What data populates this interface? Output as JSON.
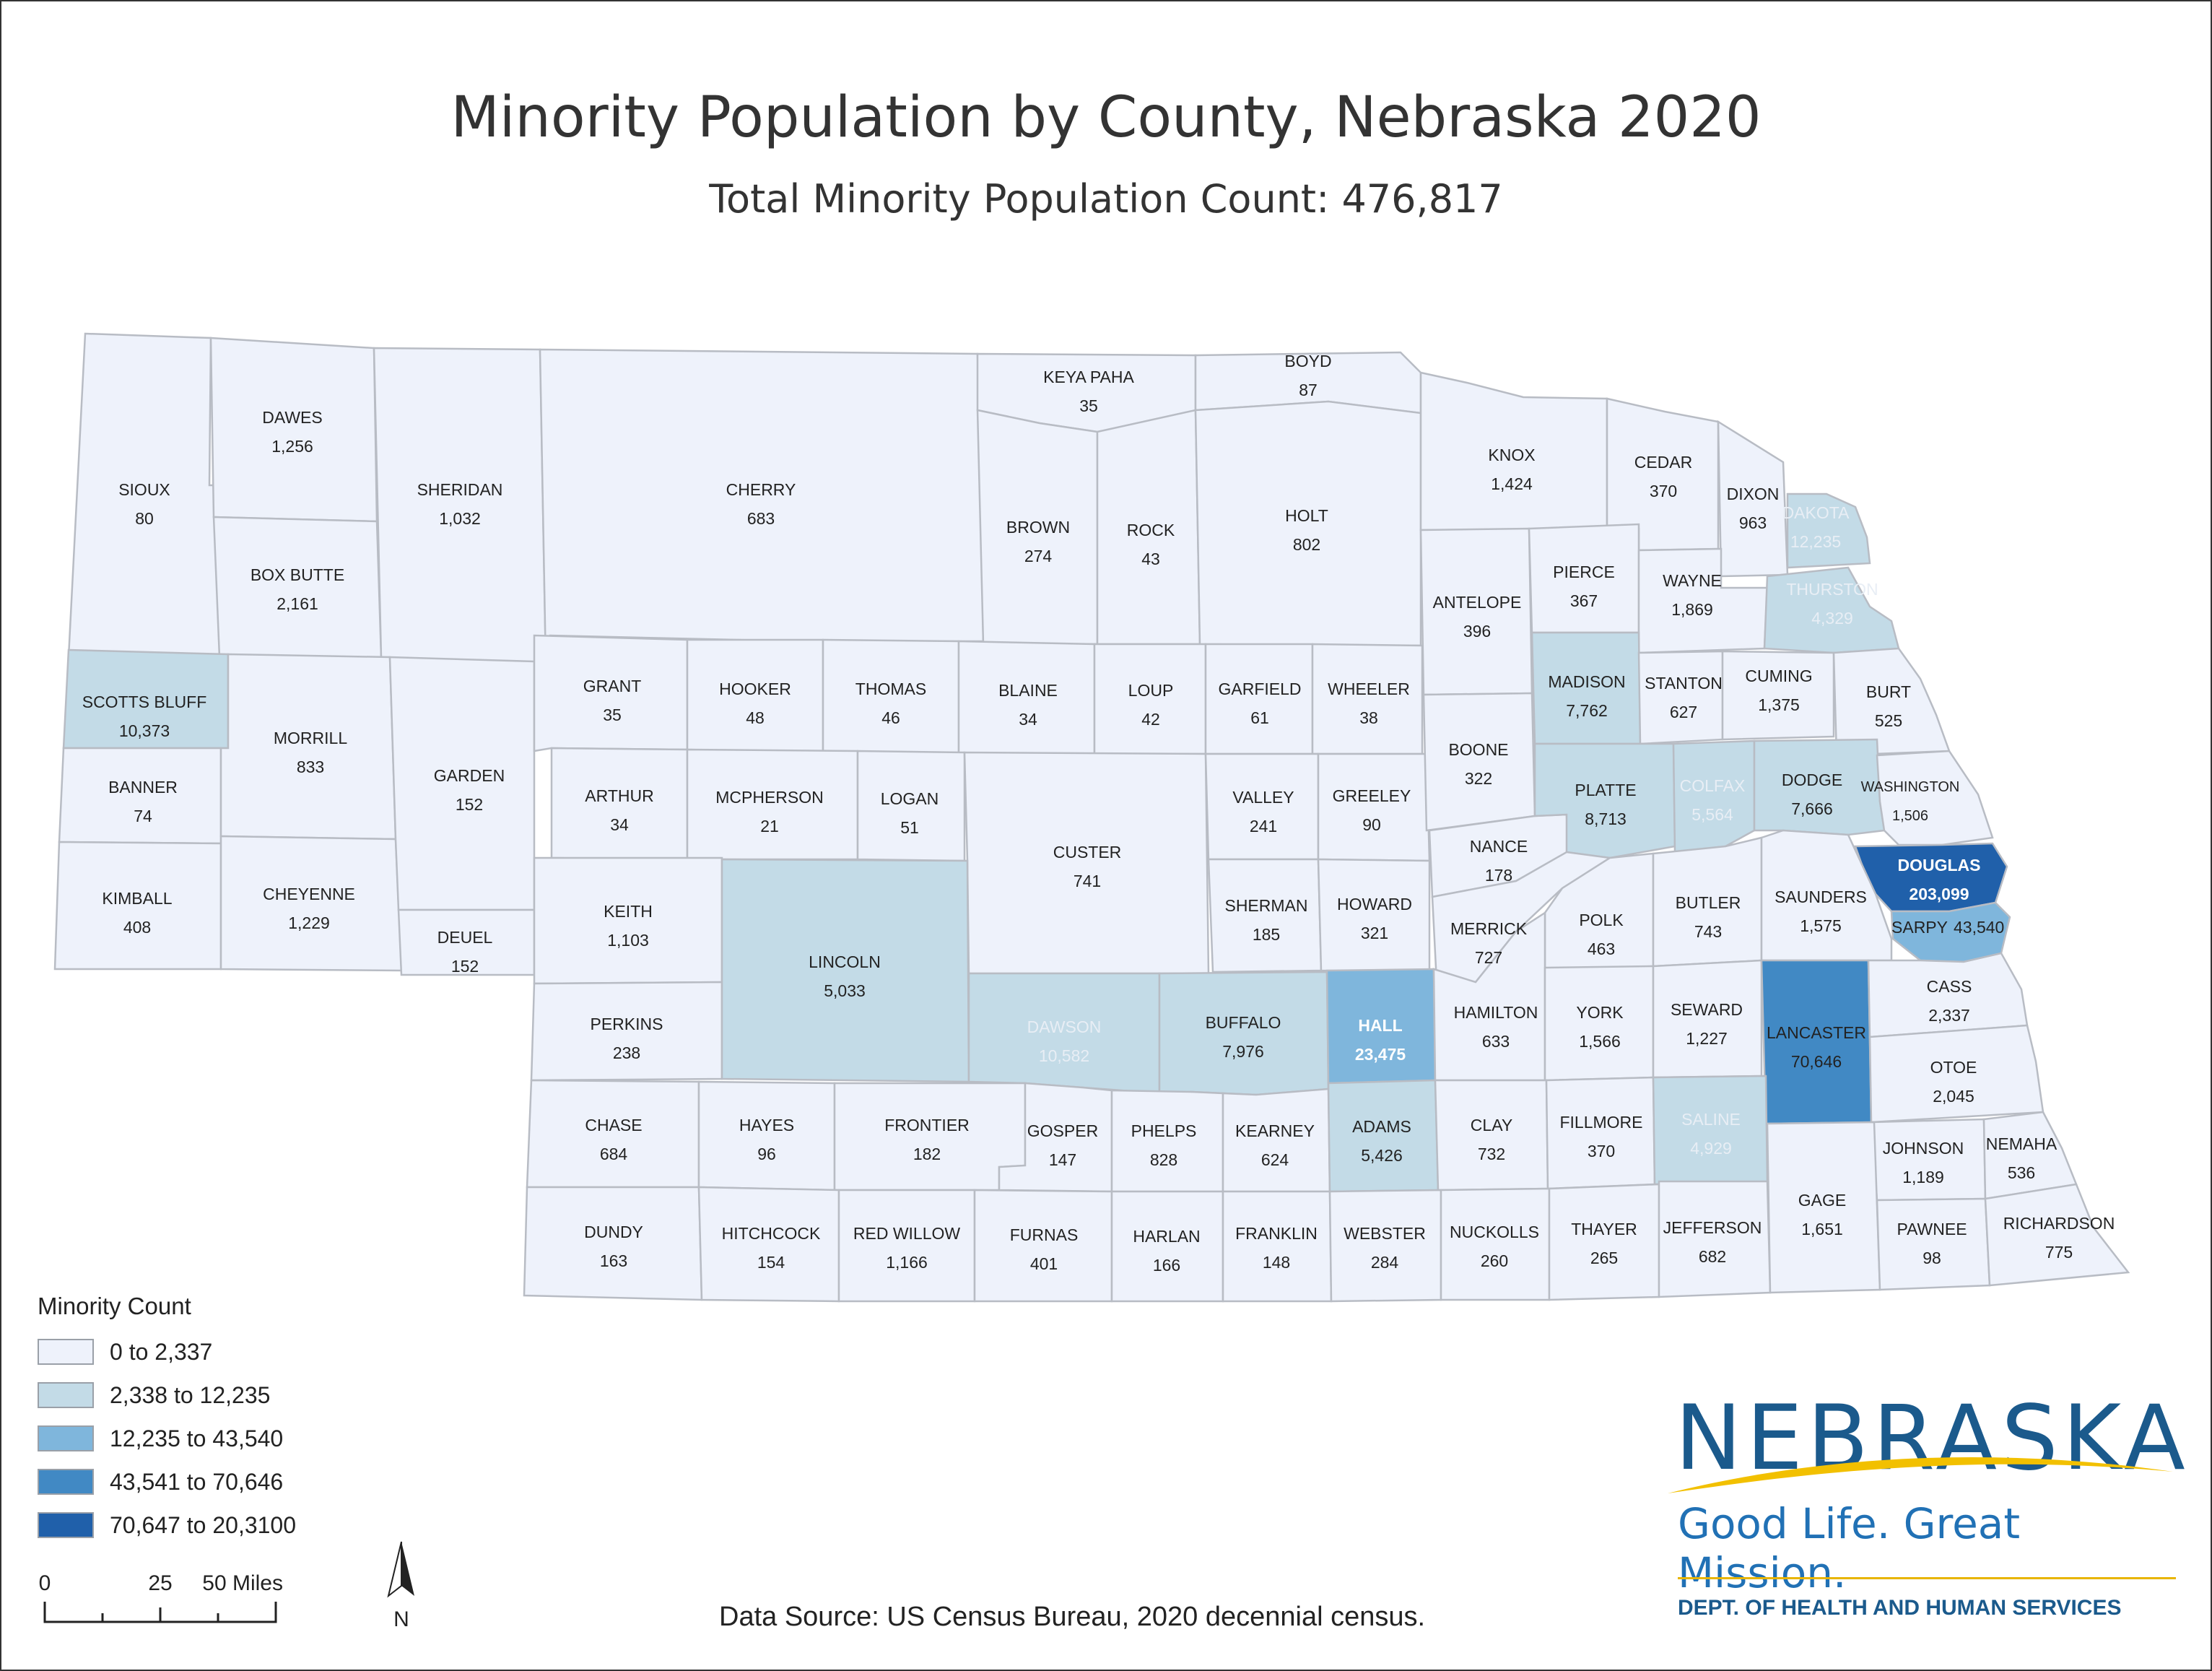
{
  "title": "Minority Population by County, Nebraska 2020",
  "subtitle": "Total Minority Population Count: 476,817",
  "colors": {
    "class1": "#eef2fb",
    "class2": "#c3dbe7",
    "class3": "#7fb6dc",
    "class4": "#4189c4",
    "class5": "#2060aa",
    "border": "#b8bcc4"
  },
  "legend": {
    "title": "Minority Count",
    "classes": [
      {
        "label": "0 to 2,337",
        "color": "#eef2fb"
      },
      {
        "label": "2,338 to 12,235",
        "color": "#c3dbe7"
      },
      {
        "label": "12,235 to 43,540",
        "color": "#7fb6dc"
      },
      {
        "label": "43,541 to 70,646",
        "color": "#4189c4"
      },
      {
        "label": "70,647 to 20,3100",
        "color": "#2060aa"
      }
    ]
  },
  "scale": {
    "ticks": [
      "0",
      "25",
      "50 Miles"
    ]
  },
  "north_label": "N",
  "source": "Data Source: US Census Bureau, 2020 decennial census.",
  "logo": {
    "wordmark": "NEBRASKA",
    "tagline": "Good Life. Great Mission.",
    "department": "DEPT. OF HEALTH AND HUMAN SERVICES"
  },
  "counties": [
    {
      "name": "SIOUX",
      "count": "80",
      "cls": 1
    },
    {
      "name": "DAWES",
      "count": "1,256",
      "cls": 1
    },
    {
      "name": "BOX BUTTE",
      "count": "2,161",
      "cls": 1
    },
    {
      "name": "SHERIDAN",
      "count": "1,032",
      "cls": 1
    },
    {
      "name": "CHERRY",
      "count": "683",
      "cls": 1
    },
    {
      "name": "KEYA PAHA",
      "count": "35",
      "cls": 1
    },
    {
      "name": "BOYD",
      "count": "87",
      "cls": 1
    },
    {
      "name": "BROWN",
      "count": "274",
      "cls": 1
    },
    {
      "name": "ROCK",
      "count": "43",
      "cls": 1
    },
    {
      "name": "HOLT",
      "count": "802",
      "cls": 1
    },
    {
      "name": "KNOX",
      "count": "1,424",
      "cls": 1
    },
    {
      "name": "CEDAR",
      "count": "370",
      "cls": 1
    },
    {
      "name": "DIXON",
      "count": "963",
      "cls": 1
    },
    {
      "name": "DAKOTA",
      "count": "12,235",
      "cls": 2
    },
    {
      "name": "SCOTTS BLUFF",
      "count": "10,373",
      "cls": 2
    },
    {
      "name": "BANNER",
      "count": "74",
      "cls": 1
    },
    {
      "name": "KIMBALL",
      "count": "408",
      "cls": 1
    },
    {
      "name": "MORRILL",
      "count": "833",
      "cls": 1
    },
    {
      "name": "CHEYENNE",
      "count": "1,229",
      "cls": 1
    },
    {
      "name": "GARDEN",
      "count": "152",
      "cls": 1
    },
    {
      "name": "DEUEL",
      "count": "152",
      "cls": 1
    },
    {
      "name": "GRANT",
      "count": "35",
      "cls": 1
    },
    {
      "name": "HOOKER",
      "count": "48",
      "cls": 1
    },
    {
      "name": "THOMAS",
      "count": "46",
      "cls": 1
    },
    {
      "name": "BLAINE",
      "count": "34",
      "cls": 1
    },
    {
      "name": "LOUP",
      "count": "42",
      "cls": 1
    },
    {
      "name": "GARFIELD",
      "count": "61",
      "cls": 1
    },
    {
      "name": "WHEELER",
      "count": "38",
      "cls": 1
    },
    {
      "name": "ANTELOPE",
      "count": "396",
      "cls": 1
    },
    {
      "name": "PIERCE",
      "count": "367",
      "cls": 1
    },
    {
      "name": "WAYNE",
      "count": "1,869",
      "cls": 1
    },
    {
      "name": "THURSTON",
      "count": "4,329",
      "cls": 2
    },
    {
      "name": "ARTHUR",
      "count": "34",
      "cls": 1
    },
    {
      "name": "MCPHERSON",
      "count": "21",
      "cls": 1
    },
    {
      "name": "LOGAN",
      "count": "51",
      "cls": 1
    },
    {
      "name": "CUSTER",
      "count": "741",
      "cls": 1
    },
    {
      "name": "VALLEY",
      "count": "241",
      "cls": 1
    },
    {
      "name": "GREELEY",
      "count": "90",
      "cls": 1
    },
    {
      "name": "BOONE",
      "count": "322",
      "cls": 1
    },
    {
      "name": "MADISON",
      "count": "7,762",
      "cls": 2
    },
    {
      "name": "STANTON",
      "count": "627",
      "cls": 1
    },
    {
      "name": "CUMING",
      "count": "1,375",
      "cls": 1
    },
    {
      "name": "BURT",
      "count": "525",
      "cls": 1
    },
    {
      "name": "KEITH",
      "count": "1,103",
      "cls": 1
    },
    {
      "name": "PERKINS",
      "count": "238",
      "cls": 1
    },
    {
      "name": "LINCOLN",
      "count": "5,033",
      "cls": 2
    },
    {
      "name": "SHERMAN",
      "count": "185",
      "cls": 1
    },
    {
      "name": "HOWARD",
      "count": "321",
      "cls": 1
    },
    {
      "name": "NANCE",
      "count": "178",
      "cls": 1
    },
    {
      "name": "PLATTE",
      "count": "8,713",
      "cls": 2
    },
    {
      "name": "COLFAX",
      "count": "5,564",
      "cls": 2
    },
    {
      "name": "DODGE",
      "count": "7,666",
      "cls": 2
    },
    {
      "name": "WASHINGTON",
      "count": "1,506",
      "cls": 1
    },
    {
      "name": "DOUGLAS",
      "count": "203,099",
      "cls": 5
    },
    {
      "name": "SARPY",
      "count": "43,540",
      "cls": 3
    },
    {
      "name": "MERRICK",
      "count": "727",
      "cls": 1
    },
    {
      "name": "POLK",
      "count": "463",
      "cls": 1
    },
    {
      "name": "BUTLER",
      "count": "743",
      "cls": 1
    },
    {
      "name": "SAUNDERS",
      "count": "1,575",
      "cls": 1
    },
    {
      "name": "DAWSON",
      "count": "10,582",
      "cls": 2
    },
    {
      "name": "BUFFALO",
      "count": "7,976",
      "cls": 2
    },
    {
      "name": "HALL",
      "count": "23,475",
      "cls": 3
    },
    {
      "name": "HAMILTON",
      "count": "633",
      "cls": 1
    },
    {
      "name": "YORK",
      "count": "1,566",
      "cls": 1
    },
    {
      "name": "SEWARD",
      "count": "1,227",
      "cls": 1
    },
    {
      "name": "LANCASTER",
      "count": "70,646",
      "cls": 4
    },
    {
      "name": "CASS",
      "count": "2,337",
      "cls": 1
    },
    {
      "name": "OTOE",
      "count": "2,045",
      "cls": 1
    },
    {
      "name": "CHASE",
      "count": "684",
      "cls": 1
    },
    {
      "name": "HAYES",
      "count": "96",
      "cls": 1
    },
    {
      "name": "FRONTIER",
      "count": "182",
      "cls": 1
    },
    {
      "name": "GOSPER",
      "count": "147",
      "cls": 1
    },
    {
      "name": "PHELPS",
      "count": "828",
      "cls": 1
    },
    {
      "name": "KEARNEY",
      "count": "624",
      "cls": 1
    },
    {
      "name": "ADAMS",
      "count": "5,426",
      "cls": 2
    },
    {
      "name": "CLAY",
      "count": "732",
      "cls": 1
    },
    {
      "name": "FILLMORE",
      "count": "370",
      "cls": 1
    },
    {
      "name": "SALINE",
      "count": "4,929",
      "cls": 2
    },
    {
      "name": "JOHNSON",
      "count": "1,189",
      "cls": 1
    },
    {
      "name": "NEMAHA",
      "count": "536",
      "cls": 1
    },
    {
      "name": "DUNDY",
      "count": "163",
      "cls": 1
    },
    {
      "name": "HITCHCOCK",
      "count": "154",
      "cls": 1
    },
    {
      "name": "RED WILLOW",
      "count": "1,166",
      "cls": 1
    },
    {
      "name": "FURNAS",
      "count": "401",
      "cls": 1
    },
    {
      "name": "HARLAN",
      "count": "166",
      "cls": 1
    },
    {
      "name": "FRANKLIN",
      "count": "148",
      "cls": 1
    },
    {
      "name": "WEBSTER",
      "count": "284",
      "cls": 1
    },
    {
      "name": "NUCKOLLS",
      "count": "260",
      "cls": 1
    },
    {
      "name": "THAYER",
      "count": "265",
      "cls": 1
    },
    {
      "name": "JEFFERSON",
      "count": "682",
      "cls": 1
    },
    {
      "name": "GAGE",
      "count": "1,651",
      "cls": 1
    },
    {
      "name": "PAWNEE",
      "count": "98",
      "cls": 1
    },
    {
      "name": "RICHARDSON",
      "count": "775",
      "cls": 1
    }
  ]
}
